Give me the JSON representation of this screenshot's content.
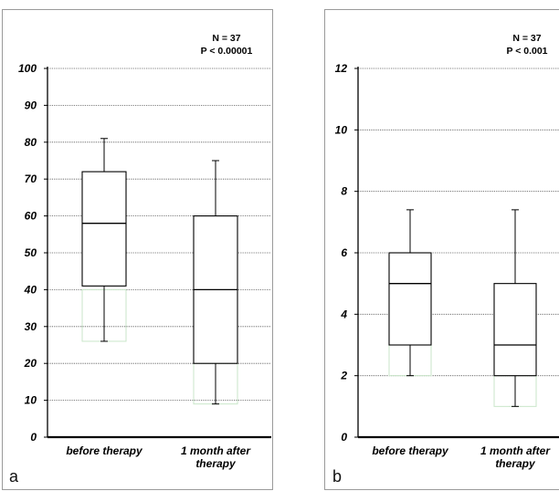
{
  "chart_data": [
    {
      "type": "box",
      "panel_label": "a",
      "annotation": [
        "N = 37",
        "P < 0.00001"
      ],
      "ylim": [
        0,
        100
      ],
      "yticks": [
        0,
        10,
        20,
        30,
        40,
        50,
        60,
        70,
        80,
        90,
        100
      ],
      "grid": true,
      "categories": [
        {
          "lines": [
            "before therapy"
          ]
        },
        {
          "lines": [
            "1 month after",
            "therapy"
          ]
        }
      ],
      "boxes": [
        {
          "whisker_low": 26,
          "q1": 41,
          "median": 58,
          "q3": 72,
          "whisker_high": 81,
          "faint_low": 26,
          "faint_high": 40
        },
        {
          "whisker_low": 9,
          "q1": 20,
          "median": 40,
          "q3": 60,
          "whisker_high": 75,
          "faint_low": 9,
          "faint_high": 20
        }
      ]
    },
    {
      "type": "box",
      "panel_label": "b",
      "annotation": [
        "N = 37",
        "P < 0.001"
      ],
      "ylim": [
        0,
        12
      ],
      "yticks": [
        0,
        2,
        4,
        6,
        8,
        10,
        12
      ],
      "grid": true,
      "categories": [
        {
          "lines": [
            "before therapy"
          ]
        },
        {
          "lines": [
            "1 month after",
            "therapy"
          ]
        }
      ],
      "boxes": [
        {
          "whisker_low": 2,
          "q1": 3,
          "median": 5,
          "q3": 6,
          "whisker_high": 7.4,
          "faint_low": 2,
          "faint_high": 3
        },
        {
          "whisker_low": 1,
          "q1": 2,
          "median": 3,
          "q3": 5,
          "whisker_high": 7.4,
          "faint_low": 1,
          "faint_high": 2
        }
      ]
    }
  ]
}
